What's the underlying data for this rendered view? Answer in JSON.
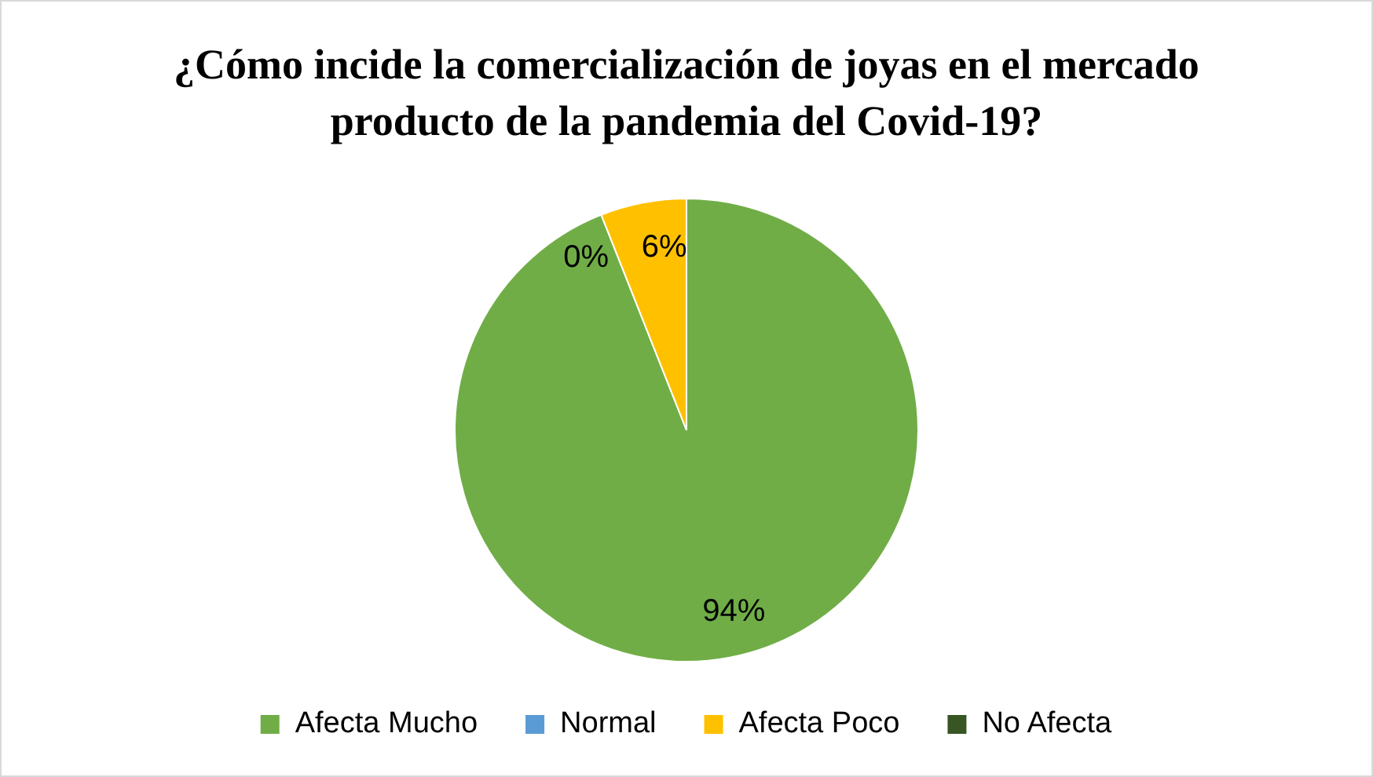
{
  "chart_data": {
    "type": "pie",
    "title": "¿Cómo incide la comercialización de joyas en el mercado producto de la pandemia del Covid-19?",
    "categories": [
      "Afecta Mucho",
      "Normal",
      "Afecta Poco",
      "No Afecta"
    ],
    "values": [
      94,
      0,
      6,
      0
    ],
    "colors": [
      "#70ad47",
      "#5b9bd5",
      "#ffc000",
      "#375623"
    ],
    "value_labels": [
      "94%",
      "0%",
      "6%",
      null
    ],
    "legend": "bottom"
  }
}
